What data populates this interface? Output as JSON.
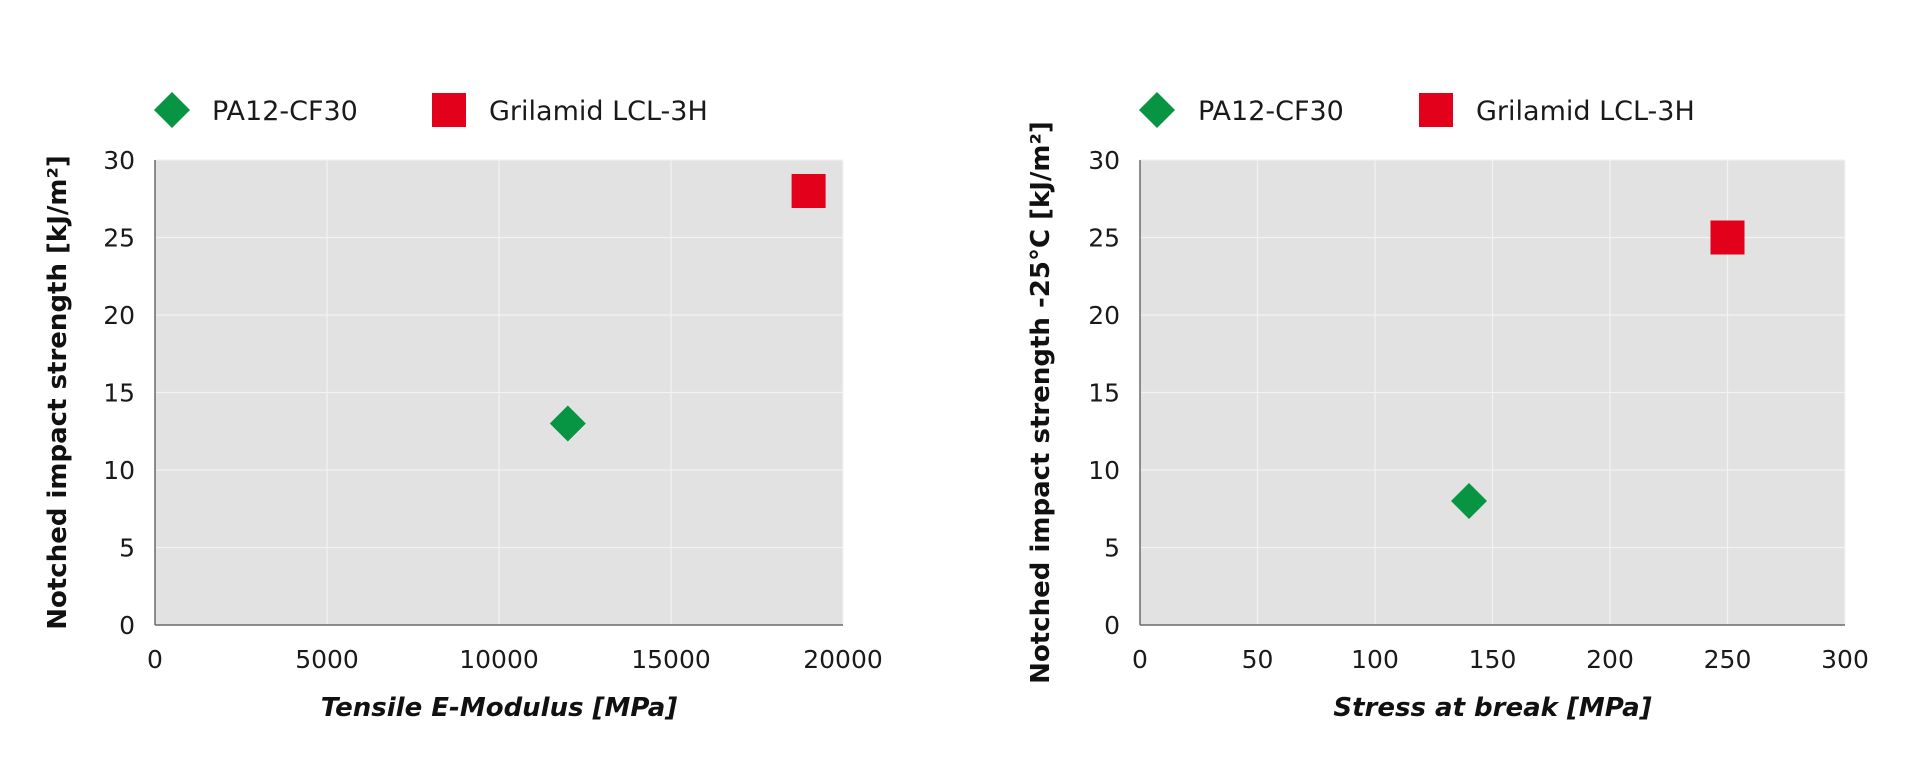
{
  "colors": {
    "plot_bg": "#e2e2e2",
    "grid": "#f2f2f2",
    "axis": "#6a6a6a",
    "pa12": "#079443",
    "grilamid": "#e2001a"
  },
  "chart_data": [
    {
      "type": "scatter",
      "legend": [
        {
          "label": "PA12-CF30",
          "marker": "diamond"
        },
        {
          "label": "Grilamid LCL-3H",
          "marker": "square"
        }
      ],
      "legend_position": "top-left",
      "grid": true,
      "xlabel": "Tensile E-Modulus [MPa]",
      "ylabel": "Notched impact strength [kJ/m²]",
      "xlim": [
        0,
        20000
      ],
      "ylim": [
        0,
        30
      ],
      "xticks": [
        "0",
        "5000",
        "10000",
        "15000",
        "20000"
      ],
      "yticks": [
        "0",
        "5",
        "10",
        "15",
        "20",
        "25",
        "30"
      ],
      "series": [
        {
          "name": "PA12-CF30",
          "x": 12000,
          "y": 13
        },
        {
          "name": "Grilamid LCL-3H",
          "x": 19000,
          "y": 28
        }
      ]
    },
    {
      "type": "scatter",
      "legend": [
        {
          "label": "PA12-CF30",
          "marker": "diamond"
        },
        {
          "label": "Grilamid LCL-3H",
          "marker": "square"
        }
      ],
      "legend_position": "top-left",
      "grid": true,
      "xlabel": "Stress at break [MPa]",
      "ylabel": "Notched impact strength -25°C [kJ/m²]",
      "xlim": [
        0,
        300
      ],
      "ylim": [
        0,
        30
      ],
      "xticks": [
        "0",
        "50",
        "100",
        "150",
        "200",
        "250",
        "300"
      ],
      "yticks": [
        "0",
        "5",
        "10",
        "15",
        "20",
        "25",
        "30"
      ],
      "series": [
        {
          "name": "PA12-CF30",
          "x": 140,
          "y": 8
        },
        {
          "name": "Grilamid LCL-3H",
          "x": 250,
          "y": 25
        }
      ]
    }
  ]
}
